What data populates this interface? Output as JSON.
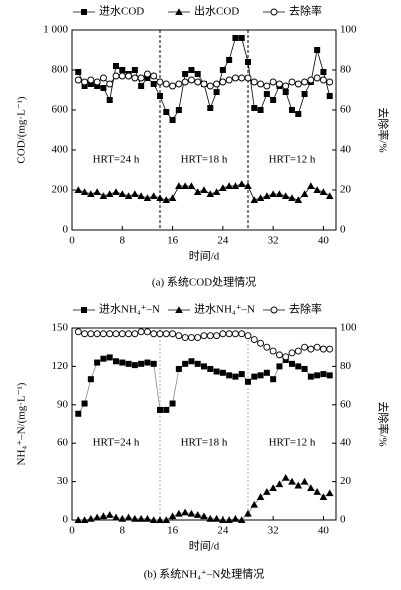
{
  "chart_data": [
    {
      "type": "line",
      "caption": "(a) 系统COD处理情况",
      "xlabel": "时间/d",
      "ylabel": "COD/(mg·L⁻¹)",
      "y2label": "去除率/%",
      "x": [
        1,
        2,
        3,
        4,
        5,
        6,
        7,
        8,
        9,
        10,
        11,
        12,
        13,
        14,
        15,
        16,
        17,
        18,
        19,
        20,
        21,
        22,
        23,
        24,
        25,
        26,
        27,
        28,
        29,
        30,
        31,
        32,
        33,
        34,
        35,
        36,
        37,
        38,
        39,
        40,
        41
      ],
      "xlim": [
        0,
        42
      ],
      "xticks": [
        0,
        8,
        16,
        24,
        32,
        40
      ],
      "ylim": [
        0,
        1000
      ],
      "yticks": [
        0,
        200,
        400,
        600,
        800,
        {
          "value": 1000,
          "label": "1 000"
        }
      ],
      "y2lim": [
        0,
        100
      ],
      "y2ticks": [
        0,
        20,
        40,
        60,
        80,
        100
      ],
      "vlines": [
        14,
        28
      ],
      "annotations": [
        {
          "text": "HRT=24 h",
          "x": 7,
          "y": 350
        },
        {
          "text": "HRT=18 h",
          "x": 21,
          "y": 350
        },
        {
          "text": "HRT=12 h",
          "x": 35,
          "y": 350
        }
      ],
      "line_color": "#000000",
      "series": [
        {
          "name": "进水COD",
          "marker": "square",
          "color": "#000000",
          "values": [
            790,
            720,
            730,
            720,
            710,
            650,
            820,
            800,
            780,
            800,
            720,
            760,
            730,
            670,
            590,
            550,
            600,
            780,
            800,
            780,
            730,
            610,
            690,
            800,
            850,
            960,
            960,
            840,
            610,
            600,
            680,
            650,
            720,
            690,
            600,
            580,
            680,
            740,
            900,
            790,
            670
          ]
        },
        {
          "name": "出水COD",
          "marker": "triangle",
          "color": "#000000",
          "values": [
            200,
            190,
            180,
            190,
            170,
            180,
            190,
            180,
            170,
            180,
            170,
            160,
            170,
            160,
            150,
            160,
            220,
            220,
            220,
            190,
            200,
            180,
            190,
            210,
            220,
            220,
            230,
            220,
            150,
            160,
            170,
            180,
            180,
            170,
            160,
            150,
            180,
            220,
            200,
            190,
            170
          ]
        },
        {
          "name": "去除率",
          "marker": "circle",
          "color": "#000000",
          "axis": "y2",
          "values": [
            75,
            74,
            75,
            74,
            76,
            73,
            77,
            77,
            77,
            76,
            76,
            78,
            77,
            74,
            73,
            72,
            73,
            74,
            75,
            74,
            73,
            72,
            73,
            74,
            75,
            76,
            76,
            76,
            74,
            73,
            72,
            74,
            73,
            72,
            74,
            73,
            74,
            75,
            76,
            75,
            74
          ]
        }
      ]
    },
    {
      "type": "line",
      "caption": "(b) 系统NH₄⁺–N处理情况",
      "xlabel": "时间/d",
      "ylabel": "NH₄⁺–N/(mg·L⁻¹)",
      "y2label": "去除率/%",
      "x": [
        1,
        2,
        3,
        4,
        5,
        6,
        7,
        8,
        9,
        10,
        11,
        12,
        13,
        14,
        15,
        16,
        17,
        18,
        19,
        20,
        21,
        22,
        23,
        24,
        25,
        26,
        27,
        28,
        29,
        30,
        31,
        32,
        33,
        34,
        35,
        36,
        37,
        38,
        39,
        40,
        41
      ],
      "xlim": [
        0,
        42
      ],
      "xticks": [
        0,
        8,
        16,
        24,
        32,
        40
      ],
      "ylim": [
        0,
        150
      ],
      "yticks": [
        0,
        30,
        60,
        90,
        120,
        150
      ],
      "y2lim": [
        0,
        100
      ],
      "y2ticks": [
        0,
        20,
        40,
        60,
        80,
        100
      ],
      "vlines": [
        14,
        28
      ],
      "annotations": [
        {
          "text": "HRT=24 h",
          "x": 7,
          "y": 60
        },
        {
          "text": "HRT=18 h",
          "x": 21,
          "y": 60
        },
        {
          "text": "HRT=12 h",
          "x": 35,
          "y": 60
        }
      ],
      "line_color": "#888888",
      "series": [
        {
          "name": "进水NH₄⁺–N",
          "marker": "square",
          "color": "#000000",
          "values": [
            83,
            91,
            110,
            123,
            126,
            127,
            124,
            123,
            122,
            121,
            122,
            123,
            122,
            86,
            86,
            91,
            118,
            122,
            124,
            122,
            120,
            118,
            116,
            115,
            113,
            112,
            114,
            108,
            112,
            113,
            115,
            110,
            120,
            125,
            122,
            120,
            118,
            112,
            113,
            114,
            113
          ]
        },
        {
          "name": "进水NH₄⁺–N",
          "marker": "triangle",
          "color": "#000000",
          "values": [
            0,
            0,
            1,
            2,
            3,
            4,
            2,
            1,
            2,
            1,
            1,
            1,
            0,
            0,
            0,
            3,
            5,
            6,
            5,
            4,
            3,
            1,
            1,
            0,
            0,
            1,
            0,
            5,
            12,
            18,
            22,
            25,
            28,
            33,
            30,
            27,
            30,
            25,
            22,
            18,
            21
          ]
        },
        {
          "name": "去除率",
          "marker": "circle",
          "color": "#000000",
          "axis": "y2",
          "values": [
            98,
            97,
            97,
            97,
            97,
            97,
            97,
            97,
            97,
            97,
            98,
            98,
            97,
            97,
            97,
            97,
            96,
            95,
            95,
            95,
            96,
            96,
            96,
            97,
            97,
            97,
            97,
            96,
            94,
            92,
            90,
            88,
            86,
            85,
            87,
            88,
            90,
            89,
            90,
            89,
            89
          ]
        }
      ]
    }
  ]
}
